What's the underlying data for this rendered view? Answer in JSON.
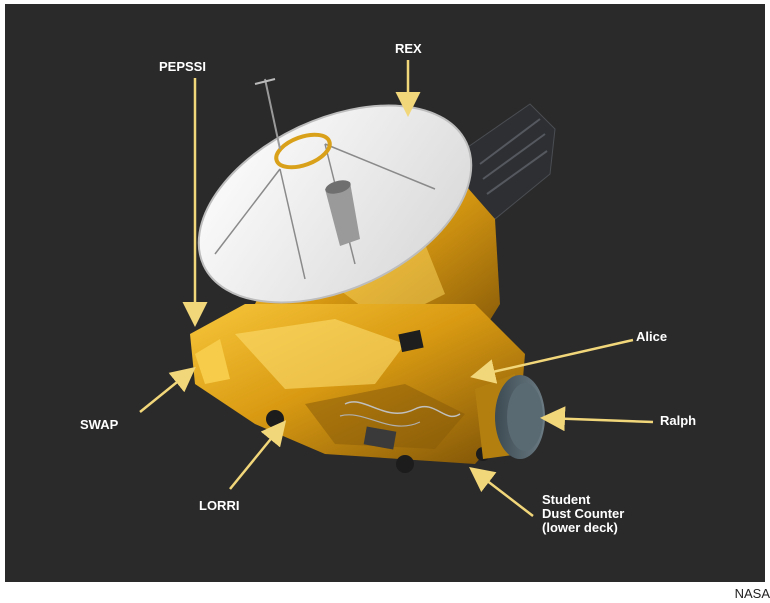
{
  "labels": {
    "rex": "REX",
    "pepssi": "PEPSSI",
    "alice": "Alice",
    "swap": "SWAP",
    "ralph": "Ralph",
    "lorri": "LORRI",
    "sdc_line1": "Student",
    "sdc_line2": "Dust Counter",
    "sdc_line3": "(lower deck)"
  },
  "credit": "NASA",
  "colors": {
    "background": "#2a2a2a",
    "arrow": "#f2d67a",
    "gold": "#d9a019",
    "dish": "#f4f4f4"
  }
}
